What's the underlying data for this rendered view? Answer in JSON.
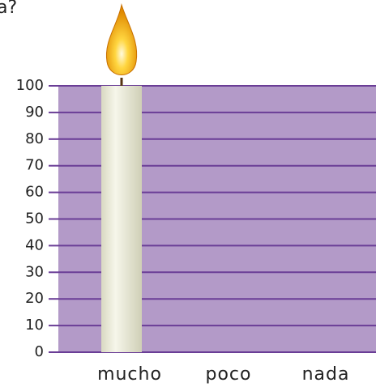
{
  "chart_data": {
    "type": "bar",
    "title": "a?",
    "categories": [
      "mucho",
      "poco",
      "nada"
    ],
    "values": [
      100,
      0,
      0
    ],
    "color": "#eeeedc",
    "background": "#b39ac8",
    "gridcolor": "#6a3d96",
    "ylim": [
      0,
      100
    ],
    "yticks": [
      0,
      10,
      20,
      30,
      40,
      50,
      60,
      70,
      80,
      90,
      100
    ],
    "grid": true
  }
}
